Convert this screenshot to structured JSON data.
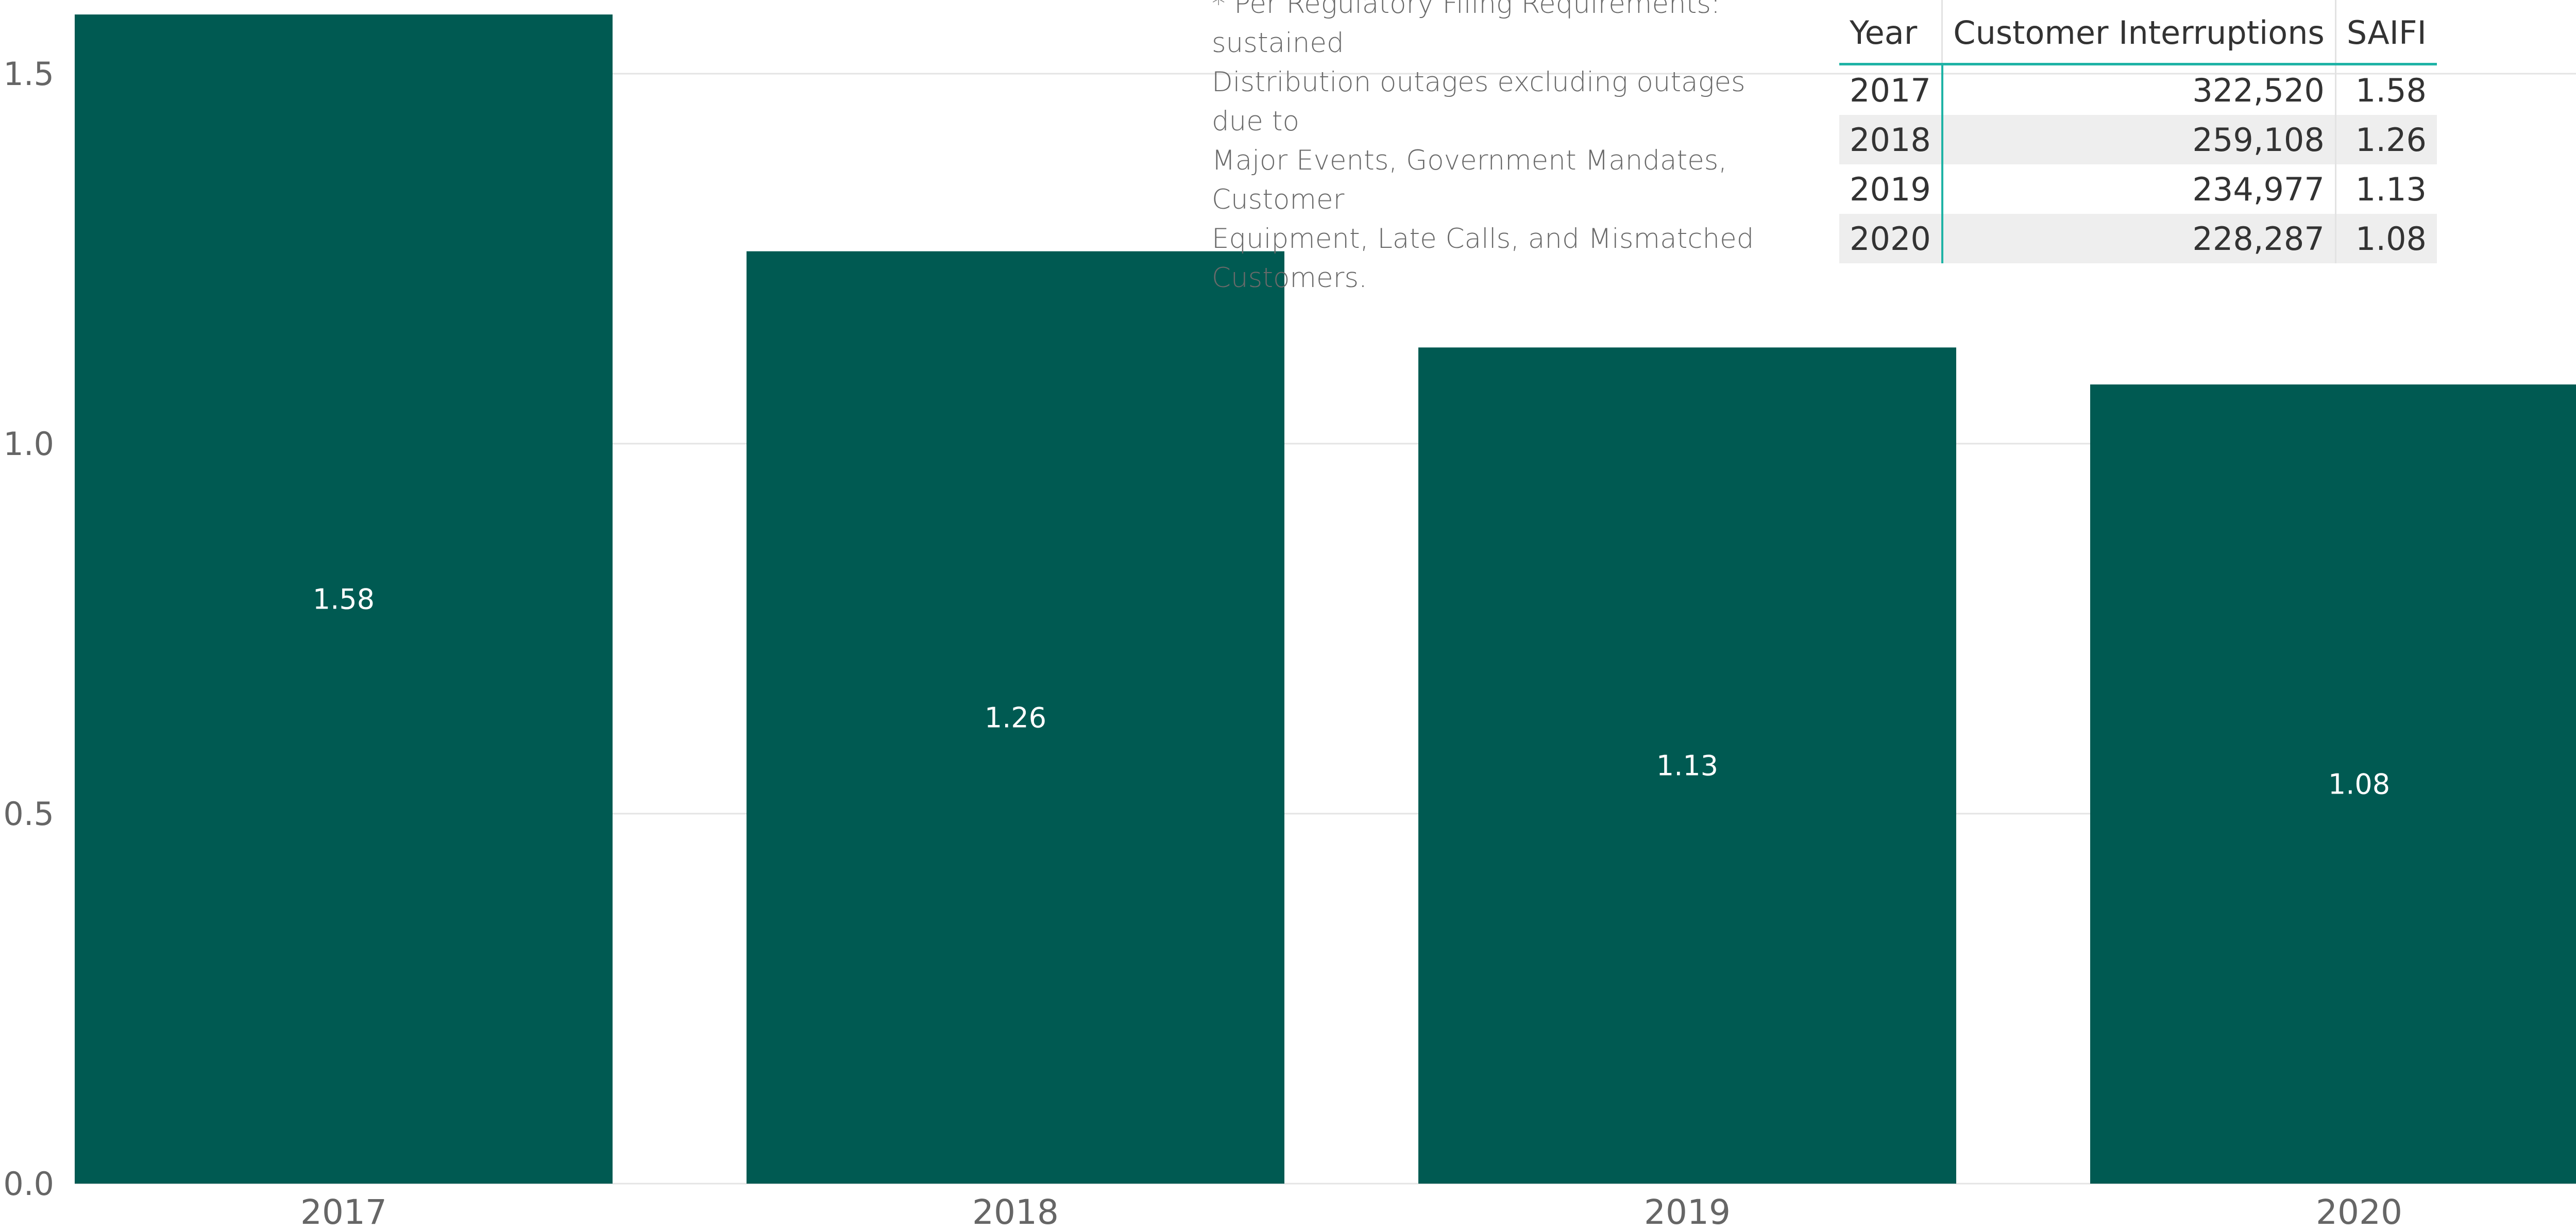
{
  "chart_data": {
    "type": "bar",
    "categories": [
      "2017",
      "2018",
      "2019",
      "2020"
    ],
    "values": [
      1.58,
      1.26,
      1.13,
      1.08
    ],
    "data_labels": [
      "1.58",
      "1.26",
      "1.13",
      "1.08"
    ],
    "yticks": [
      "0.0",
      "0.5",
      "1.0",
      "1.5"
    ],
    "ylim": [
      0,
      1.6
    ],
    "grid": true,
    "bar_color": "#005a52"
  },
  "footnote": {
    "lines": [
      "* Per Regulatory Filing Requirements: sustained",
      "Distribution outages excluding outages due to",
      "Major Events, Government Mandates, Customer",
      "Equipment, Late Calls, and Mismatched",
      "Customers."
    ]
  },
  "table": {
    "headers": [
      "Year",
      "Customer Interruptions",
      "SAIFI"
    ],
    "rows": [
      [
        "2017",
        "322,520",
        "1.58"
      ],
      [
        "2018",
        "259,108",
        "1.26"
      ],
      [
        "2019",
        "234,977",
        "1.13"
      ],
      [
        "2020",
        "228,287",
        "1.08"
      ]
    ],
    "accent_color": "#1fb3a6"
  }
}
